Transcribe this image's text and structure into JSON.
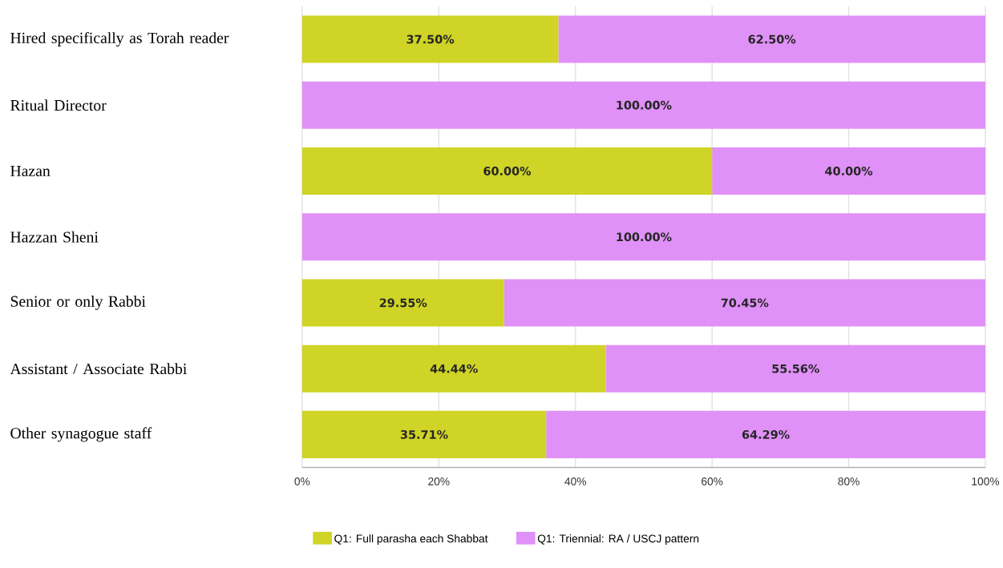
{
  "chart_data": {
    "type": "bar",
    "orientation": "horizontal",
    "stacked": true,
    "categories": [
      "Hired specifically as Torah reader",
      "Ritual Director",
      "Hazan",
      "Hazzan Sheni",
      "Senior or only Rabbi",
      "Assistant / Associate Rabbi",
      "Other synagogue staff"
    ],
    "series": [
      {
        "name": "Q1: Full parasha each Shabbat",
        "color": "#cfd426",
        "values": [
          37.5,
          0,
          60,
          0,
          29.55,
          44.44,
          35.71
        ],
        "value_labels": [
          "37.50%",
          null,
          "60.00%",
          null,
          "29.55%",
          "44.44%",
          "35.71%"
        ]
      },
      {
        "name": "Q1: Triennial: RA / USCJ pattern",
        "color": "#e091f7",
        "values": [
          62.5,
          100,
          40,
          100,
          70.45,
          55.56,
          64.29
        ],
        "value_labels": [
          "62.50%",
          "100.00%",
          "40.00%",
          "100.00%",
          "70.45%",
          "55.56%",
          "64.29%"
        ]
      }
    ],
    "xlim": [
      0,
      100
    ],
    "xticks": [
      {
        "value": 0,
        "label": "0%"
      },
      {
        "value": 20,
        "label": "20%"
      },
      {
        "value": 40,
        "label": "40%"
      },
      {
        "value": 60,
        "label": "60%"
      },
      {
        "value": 80,
        "label": "80%"
      },
      {
        "value": 100,
        "label": "100%"
      }
    ],
    "grid": "x",
    "legend": "bottom"
  }
}
